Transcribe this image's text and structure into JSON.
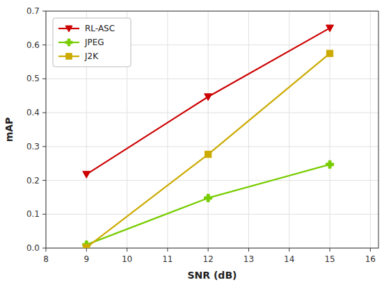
{
  "chart_data": {
    "type": "line",
    "xlabel": "SNR (dB)",
    "ylabel": "mAP",
    "x": [
      9,
      12,
      15
    ],
    "series": [
      {
        "name": "RL-ASC",
        "color": "#cc0000",
        "marker": "triangle-down",
        "values": [
          0.218,
          0.447,
          0.65
        ]
      },
      {
        "name": "JPEG",
        "color": "#77cc00",
        "marker": "plus",
        "values": [
          0.01,
          0.148,
          0.247
        ]
      },
      {
        "name": "J2K",
        "color": "#ccaa00",
        "marker": "square",
        "values": [
          0.002,
          0.277,
          0.575
        ]
      }
    ],
    "xlim": [
      8,
      16.2
    ],
    "ylim": [
      0,
      0.7
    ],
    "xticks": [
      8,
      9,
      10,
      11,
      12,
      13,
      14,
      15,
      16
    ],
    "yticks": [
      {
        "value": 0.0,
        "label": "0.0"
      },
      0.1,
      0.2,
      0.3,
      0.4,
      0.5,
      0.6,
      0.7
    ],
    "grid": true,
    "legend": "upper left"
  }
}
